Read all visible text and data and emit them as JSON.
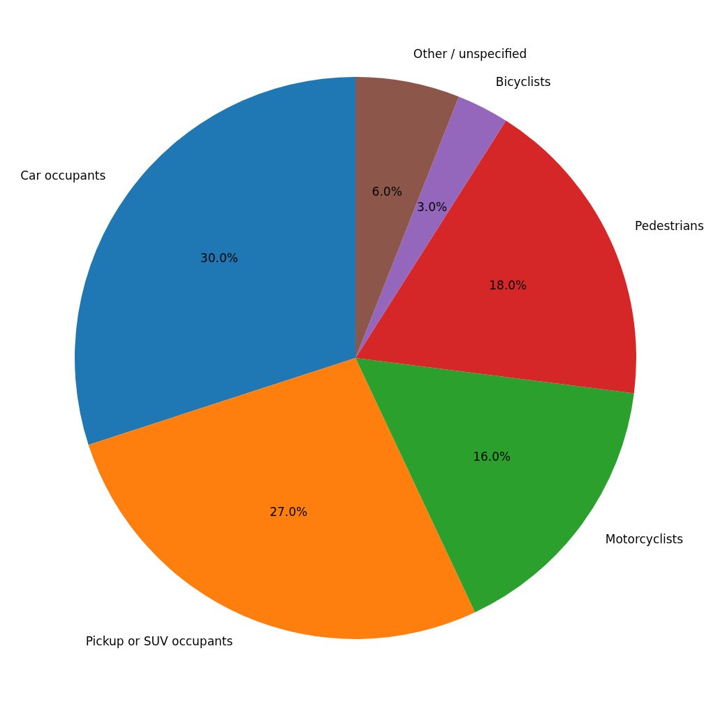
{
  "chart_data": {
    "type": "pie",
    "categories": [
      "Car occupants",
      "Pickup or SUV occupants",
      "Motorcyclists",
      "Pedestrians",
      "Bicyclists",
      "Other / unspecified"
    ],
    "values": [
      30,
      27,
      16,
      18,
      3,
      6
    ],
    "colors": [
      "#1f77b4",
      "#ff7f0e",
      "#2ca02c",
      "#d62728",
      "#9467bd",
      "#8c564b"
    ],
    "value_labels": [
      "30.0%",
      "27.0%",
      "16.0%",
      "18.0%",
      "3.0%",
      "6.0%"
    ]
  }
}
